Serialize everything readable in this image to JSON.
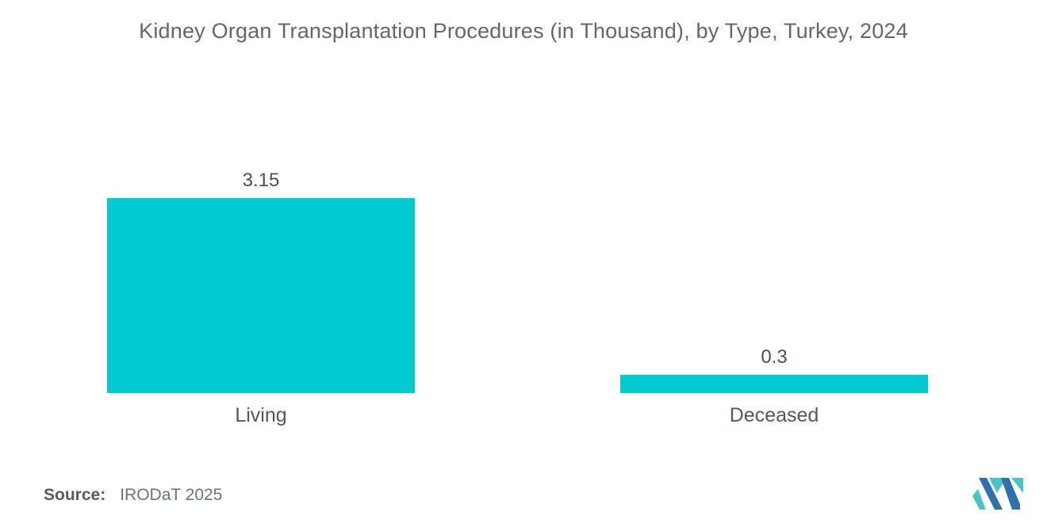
{
  "title": "Kidney Organ Transplantation Procedures (in Thousand), by Type, Turkey, 2024",
  "source": {
    "label": "Source:",
    "value": "IRODaT 2025"
  },
  "colors": {
    "bar": "#03CAD1",
    "title": "#63676A",
    "value_label": "#4B4F52",
    "category_label": "#55585B",
    "source_label": "#595C5E",
    "source_value": "#6E7376",
    "logo_blue": "#2E71AD",
    "logo_teal": "#4CC4C4"
  },
  "chart_data": {
    "type": "bar",
    "title": "Kidney Organ Transplantation Procedures (in Thousand), by Type, Turkey, 2024",
    "categories": [
      "Living",
      "Deceased"
    ],
    "values": [
      3.15,
      0.3
    ],
    "value_labels": [
      "3.15",
      "0.3"
    ],
    "xlabel": "",
    "ylabel": "",
    "ylim": [
      0,
      3.5
    ],
    "grid": false,
    "legend": false,
    "bar_color": "#03CAD1",
    "orientation": "vertical"
  }
}
